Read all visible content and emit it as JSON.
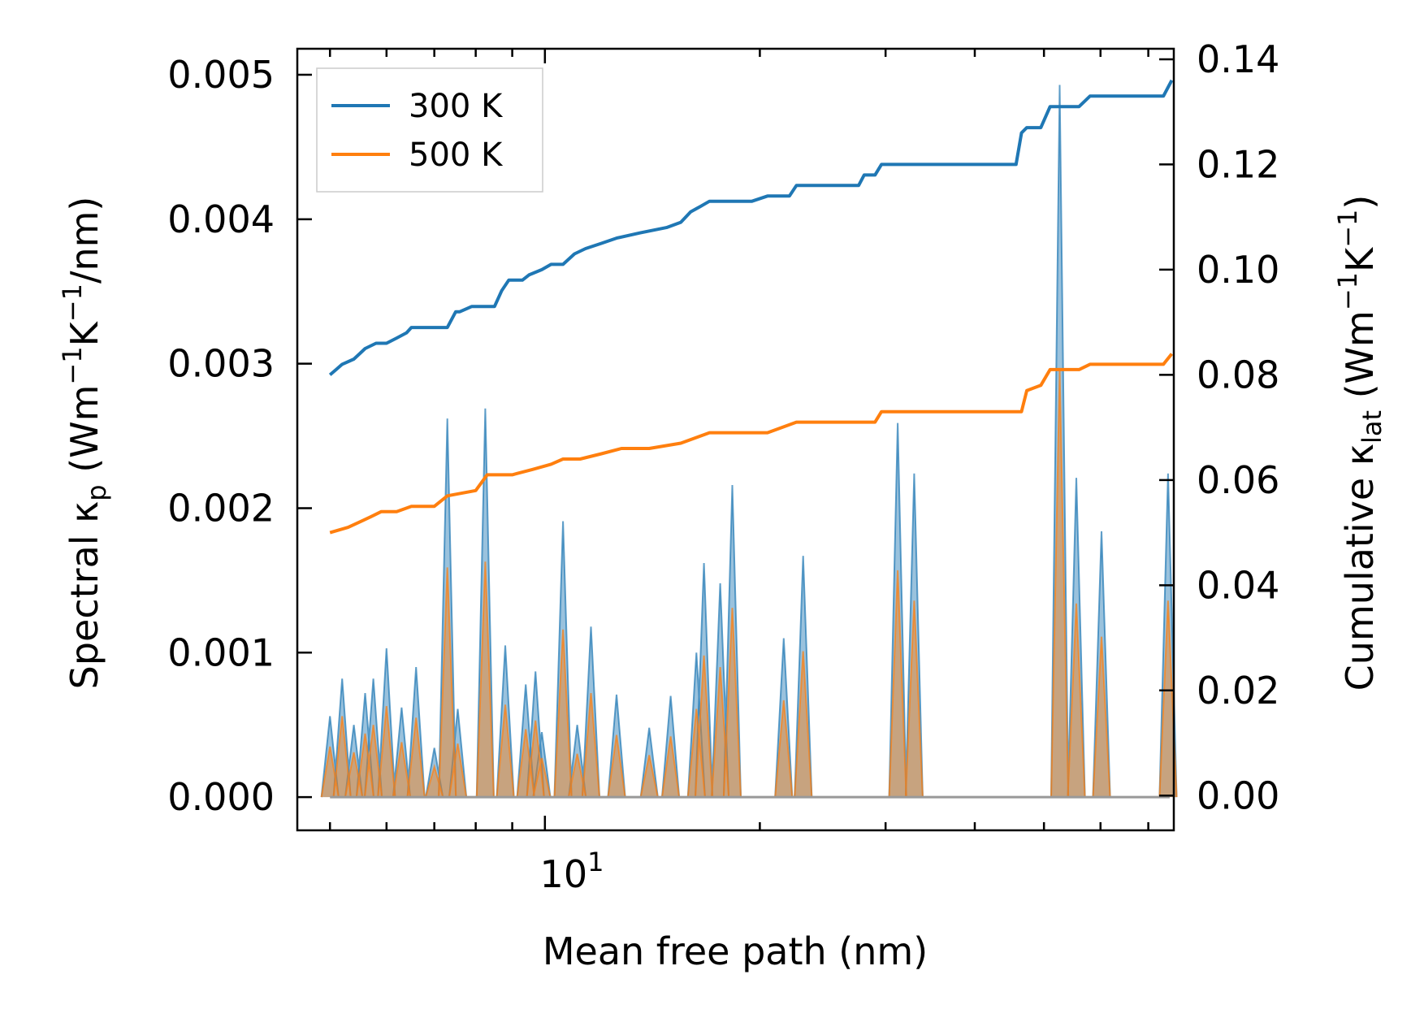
{
  "chart_data": {
    "type": "line",
    "xscale": "log",
    "xlabel": "Mean free path (nm)",
    "xlim": [
      4.5,
      76
    ],
    "xticks": [
      {
        "value": 10,
        "base": "10",
        "exp": "1"
      }
    ],
    "ylabel_left": {
      "main": "Spectral κ",
      "sub": "p",
      "unit_a": " (Wm",
      "sup1": "−1",
      "unit_b": "K",
      "sup2": "−1",
      "unit_c": "/nm)"
    },
    "ylabel_right": {
      "main": "Cumulative κ",
      "sub": "lat",
      "unit_a": " (Wm",
      "sup1": "−1",
      "unit_b": "K",
      "sup2": "−1",
      "unit_c": ")"
    },
    "ylim_left": [
      -0.00023,
      0.00518
    ],
    "ylim_right": [
      -0.0066,
      0.142
    ],
    "yticks_left": [
      "0.000",
      "0.001",
      "0.002",
      "0.003",
      "0.004",
      "0.005"
    ],
    "yticks_left_values": [
      0,
      0.001,
      0.002,
      0.003,
      0.004,
      0.005
    ],
    "yticks_right": [
      "0.00",
      "0.02",
      "0.04",
      "0.06",
      "0.08",
      "0.10",
      "0.12",
      "0.14"
    ],
    "yticks_right_values": [
      0,
      0.02,
      0.04,
      0.06,
      0.08,
      0.1,
      0.12,
      0.14
    ],
    "legend": [
      {
        "label": "300 K",
        "color": "#1f77b4"
      },
      {
        "label": "500 K",
        "color": "#ff7f0e"
      }
    ],
    "legend_position": "top-left",
    "cumulative": [
      {
        "name": "300 K",
        "color": "#1f77b4",
        "points": [
          [
            5,
            0.08
          ],
          [
            5.1,
            0.081
          ],
          [
            5.2,
            0.082
          ],
          [
            5.4,
            0.083
          ],
          [
            5.5,
            0.084
          ],
          [
            5.6,
            0.085
          ],
          [
            5.8,
            0.086
          ],
          [
            6.0,
            0.086
          ],
          [
            6.2,
            0.087
          ],
          [
            6.4,
            0.088
          ],
          [
            6.5,
            0.089
          ],
          [
            7.3,
            0.089
          ],
          [
            7.5,
            0.092
          ],
          [
            7.6,
            0.092
          ],
          [
            7.9,
            0.093
          ],
          [
            8.5,
            0.093
          ],
          [
            8.7,
            0.096
          ],
          [
            8.9,
            0.098
          ],
          [
            9.3,
            0.098
          ],
          [
            9.5,
            0.099
          ],
          [
            9.9,
            0.1
          ],
          [
            10.2,
            0.101
          ],
          [
            10.6,
            0.101
          ],
          [
            11.0,
            0.103
          ],
          [
            11.4,
            0.104
          ],
          [
            12.0,
            0.105
          ],
          [
            12.6,
            0.106
          ],
          [
            13.6,
            0.107
          ],
          [
            14.8,
            0.108
          ],
          [
            15.5,
            0.109
          ],
          [
            16.0,
            0.111
          ],
          [
            16.5,
            0.112
          ],
          [
            17.0,
            0.113
          ],
          [
            19.5,
            0.113
          ],
          [
            20.5,
            0.114
          ],
          [
            22.0,
            0.114
          ],
          [
            22.5,
            0.116
          ],
          [
            27.5,
            0.116
          ],
          [
            28.0,
            0.118
          ],
          [
            29.0,
            0.118
          ],
          [
            29.6,
            0.12
          ],
          [
            45.7,
            0.12
          ],
          [
            46.5,
            0.126
          ],
          [
            47.3,
            0.127
          ],
          [
            49.5,
            0.127
          ],
          [
            51.0,
            0.131
          ],
          [
            56.0,
            0.131
          ],
          [
            58.0,
            0.133
          ],
          [
            73.5,
            0.133
          ],
          [
            75.5,
            0.136
          ]
        ]
      },
      {
        "name": "500 K",
        "color": "#ff7f0e",
        "points": [
          [
            5,
            0.05
          ],
          [
            5.3,
            0.051
          ],
          [
            5.5,
            0.052
          ],
          [
            5.7,
            0.053
          ],
          [
            5.9,
            0.054
          ],
          [
            6.2,
            0.054
          ],
          [
            6.5,
            0.055
          ],
          [
            7.0,
            0.055
          ],
          [
            7.3,
            0.057
          ],
          [
            8.0,
            0.058
          ],
          [
            8.3,
            0.061
          ],
          [
            9.0,
            0.061
          ],
          [
            9.6,
            0.062
          ],
          [
            10.2,
            0.063
          ],
          [
            10.6,
            0.064
          ],
          [
            11.2,
            0.064
          ],
          [
            12.0,
            0.065
          ],
          [
            12.8,
            0.066
          ],
          [
            14.0,
            0.066
          ],
          [
            15.5,
            0.067
          ],
          [
            17.0,
            0.069
          ],
          [
            20.5,
            0.069
          ],
          [
            22.5,
            0.071
          ],
          [
            29.0,
            0.071
          ],
          [
            29.6,
            0.073
          ],
          [
            46.5,
            0.073
          ],
          [
            47.3,
            0.077
          ],
          [
            49.5,
            0.078
          ],
          [
            51.0,
            0.081
          ],
          [
            56.0,
            0.081
          ],
          [
            58.0,
            0.082
          ],
          [
            73.5,
            0.082
          ],
          [
            75.5,
            0.084
          ]
        ]
      }
    ],
    "spectral": [
      {
        "name": "300 K",
        "color": "#1f77b4",
        "spikes": [
          [
            5.0,
            0.00056
          ],
          [
            5.2,
            0.00082
          ],
          [
            5.4,
            0.0005
          ],
          [
            5.6,
            0.00072
          ],
          [
            5.75,
            0.00082
          ],
          [
            6.0,
            0.00103
          ],
          [
            6.3,
            0.00062
          ],
          [
            6.6,
            0.0009
          ],
          [
            7.0,
            0.00034
          ],
          [
            7.3,
            0.00262
          ],
          [
            7.55,
            0.00061
          ],
          [
            8.25,
            0.00269
          ],
          [
            8.8,
            0.00105
          ],
          [
            9.4,
            0.00078
          ],
          [
            9.7,
            0.00087
          ],
          [
            9.9,
            0.00045
          ],
          [
            10.6,
            0.00191
          ],
          [
            11.1,
            0.0005
          ],
          [
            11.6,
            0.00118
          ],
          [
            12.6,
            0.00071
          ],
          [
            14.0,
            0.00048
          ],
          [
            15.0,
            0.0007
          ],
          [
            16.3,
            0.001
          ],
          [
            16.7,
            0.00162
          ],
          [
            17.6,
            0.00148
          ],
          [
            18.3,
            0.00216
          ],
          [
            21.6,
            0.0011
          ],
          [
            23.0,
            0.00167
          ],
          [
            31.2,
            0.00259
          ],
          [
            32.9,
            0.00224
          ],
          [
            52.6,
            0.00493
          ],
          [
            55.5,
            0.00221
          ],
          [
            60.2,
            0.00184
          ],
          [
            74.6,
            0.00224
          ]
        ]
      },
      {
        "name": "500 K",
        "color": "#ff7f0e",
        "spikes": [
          [
            5.0,
            0.00035
          ],
          [
            5.2,
            0.00056
          ],
          [
            5.4,
            0.00031
          ],
          [
            5.6,
            0.00044
          ],
          [
            5.75,
            0.0005
          ],
          [
            6.0,
            0.00063
          ],
          [
            6.3,
            0.00038
          ],
          [
            6.6,
            0.00055
          ],
          [
            7.0,
            0.00021
          ],
          [
            7.3,
            0.00159
          ],
          [
            7.55,
            0.00037
          ],
          [
            8.25,
            0.00163
          ],
          [
            8.8,
            0.00064
          ],
          [
            9.4,
            0.00047
          ],
          [
            9.7,
            0.00053
          ],
          [
            9.9,
            0.00027
          ],
          [
            10.6,
            0.00116
          ],
          [
            11.1,
            0.0003
          ],
          [
            11.6,
            0.00072
          ],
          [
            12.6,
            0.00043
          ],
          [
            14.0,
            0.00029
          ],
          [
            15.0,
            0.00042
          ],
          [
            16.3,
            0.00061
          ],
          [
            16.7,
            0.00098
          ],
          [
            17.6,
            0.0009
          ],
          [
            18.3,
            0.00131
          ],
          [
            21.6,
            0.00067
          ],
          [
            23.0,
            0.00101
          ],
          [
            31.2,
            0.00157
          ],
          [
            32.9,
            0.00136
          ],
          [
            52.6,
            0.00295
          ],
          [
            55.5,
            0.00134
          ],
          [
            60.2,
            0.00111
          ],
          [
            74.6,
            0.00136
          ]
        ]
      }
    ]
  }
}
